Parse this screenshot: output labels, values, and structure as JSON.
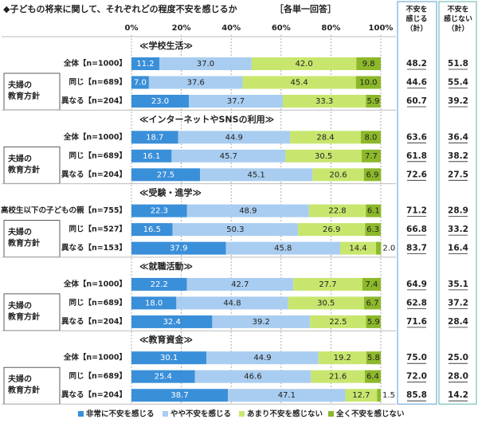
{
  "chart_data": {
    "type": "bar",
    "title": "◆子どもの将来に関して、それぞれどの程度不安を感じるか",
    "note": "［各単一回答］",
    "column_headers": [
      [
        "不安を",
        "感じる",
        "（計）"
      ],
      [
        "不安を",
        "感じない",
        "（計）"
      ]
    ],
    "xlim": [
      0,
      100
    ],
    "xticks": [
      {
        "value": 0,
        "label": "0%"
      },
      {
        "value": 20,
        "label": "20%"
      },
      {
        "value": 40,
        "label": "40%"
      },
      {
        "value": 60,
        "label": "60%"
      },
      {
        "value": 80,
        "label": "80%"
      },
      {
        "value": 100,
        "label": "100%"
      }
    ],
    "series": [
      {
        "name": "非常に不安を感じる",
        "color": "#3a8fd9"
      },
      {
        "name": "やや不安を感じる",
        "color": "#a9cdf0"
      },
      {
        "name": "あまり不安を感じない",
        "color": "#c8e66e"
      },
      {
        "name": "全く不安を感じない",
        "color": "#8cb82a"
      }
    ],
    "sections": [
      {
        "title": "≪学校生活≫",
        "group_label": [
          "夫婦の",
          "教育方針"
        ],
        "rows": [
          {
            "label": "全体【n=1000】",
            "values": [
              11.2,
              37.0,
              42.0,
              9.8
            ],
            "value_labels": [
              "11.2",
              "37.0",
              "42.0",
              "9.8"
            ],
            "totals": [
              48.2,
              51.8
            ],
            "total_labels": [
              "48.2",
              "51.8"
            ]
          },
          {
            "label": "同じ【n=689】",
            "values": [
              7.0,
              37.6,
              45.4,
              10.0
            ],
            "value_labels": [
              "7.0",
              "37.6",
              "45.4",
              "10.0"
            ],
            "totals": [
              44.6,
              55.4
            ],
            "total_labels": [
              "44.6",
              "55.4"
            ]
          },
          {
            "label": "異なる【n=204】",
            "values": [
              23.0,
              37.7,
              33.3,
              5.9
            ],
            "value_labels": [
              "23.0",
              "37.7",
              "33.3",
              "5.9"
            ],
            "totals": [
              60.7,
              39.2
            ],
            "total_labels": [
              "60.7",
              "39.2"
            ]
          }
        ]
      },
      {
        "title": "≪インターネットやSNSの利用≫",
        "group_label": [
          "夫婦の",
          "教育方針"
        ],
        "rows": [
          {
            "label": "全体【n=1000】",
            "values": [
              18.7,
              44.9,
              28.4,
              8.0
            ],
            "value_labels": [
              "18.7",
              "44.9",
              "28.4",
              "8.0"
            ],
            "totals": [
              63.6,
              36.4
            ],
            "total_labels": [
              "63.6",
              "36.4"
            ]
          },
          {
            "label": "同じ【n=689】",
            "values": [
              16.1,
              45.7,
              30.5,
              7.7
            ],
            "value_labels": [
              "16.1",
              "45.7",
              "30.5",
              "7.7"
            ],
            "totals": [
              61.8,
              38.2
            ],
            "total_labels": [
              "61.8",
              "38.2"
            ]
          },
          {
            "label": "異なる【n=204】",
            "values": [
              27.5,
              45.1,
              20.6,
              6.9
            ],
            "value_labels": [
              "27.5",
              "45.1",
              "20.6",
              "6.9"
            ],
            "totals": [
              72.6,
              27.5
            ],
            "total_labels": [
              "72.6",
              "27.5"
            ]
          }
        ]
      },
      {
        "title": "≪受験・進学≫",
        "group_label": [
          "夫婦の",
          "教育方針"
        ],
        "rows": [
          {
            "label": "高校生以下の子どもの親【n=755】",
            "values": [
              22.3,
              48.9,
              22.8,
              6.1
            ],
            "value_labels": [
              "22.3",
              "48.9",
              "22.8",
              "6.1"
            ],
            "totals": [
              71.2,
              28.9
            ],
            "total_labels": [
              "71.2",
              "28.9"
            ]
          },
          {
            "label": "同じ【n=527】",
            "values": [
              16.5,
              50.3,
              26.9,
              6.3
            ],
            "value_labels": [
              "16.5",
              "50.3",
              "26.9",
              "6.3"
            ],
            "totals": [
              66.8,
              33.2
            ],
            "total_labels": [
              "66.8",
              "33.2"
            ]
          },
          {
            "label": "異なる【n=153】",
            "values": [
              37.9,
              45.8,
              14.4,
              2.0
            ],
            "value_labels": [
              "37.9",
              "45.8",
              "14.4",
              "2.0"
            ],
            "totals": [
              83.7,
              16.4
            ],
            "total_labels": [
              "83.7",
              "16.4"
            ]
          }
        ]
      },
      {
        "title": "≪就職活動≫",
        "group_label": [
          "夫婦の",
          "教育方針"
        ],
        "rows": [
          {
            "label": "全体【n=1000】",
            "values": [
              22.2,
              42.7,
              27.7,
              7.4
            ],
            "value_labels": [
              "22.2",
              "42.7",
              "27.7",
              "7.4"
            ],
            "totals": [
              64.9,
              35.1
            ],
            "total_labels": [
              "64.9",
              "35.1"
            ]
          },
          {
            "label": "同じ【n=689】",
            "values": [
              18.0,
              44.8,
              30.5,
              6.7
            ],
            "value_labels": [
              "18.0",
              "44.8",
              "30.5",
              "6.7"
            ],
            "totals": [
              62.8,
              37.2
            ],
            "total_labels": [
              "62.8",
              "37.2"
            ]
          },
          {
            "label": "異なる【n=204】",
            "values": [
              32.4,
              39.2,
              22.5,
              5.9
            ],
            "value_labels": [
              "32.4",
              "39.2",
              "22.5",
              "5.9"
            ],
            "totals": [
              71.6,
              28.4
            ],
            "total_labels": [
              "71.6",
              "28.4"
            ]
          }
        ]
      },
      {
        "title": "≪教育資金≫",
        "group_label": [
          "夫婦の",
          "教育方針"
        ],
        "rows": [
          {
            "label": "全体【n=1000】",
            "values": [
              30.1,
              44.9,
              19.2,
              5.8
            ],
            "value_labels": [
              "30.1",
              "44.9",
              "19.2",
              "5.8"
            ],
            "totals": [
              75.0,
              25.0
            ],
            "total_labels": [
              "75.0",
              "25.0"
            ]
          },
          {
            "label": "同じ【n=689】",
            "values": [
              25.4,
              46.6,
              21.6,
              6.4
            ],
            "value_labels": [
              "25.4",
              "46.6",
              "21.6",
              "6.4"
            ],
            "totals": [
              72.0,
              28.0
            ],
            "total_labels": [
              "72.0",
              "28.0"
            ]
          },
          {
            "label": "異なる【n=204】",
            "values": [
              38.7,
              47.1,
              12.7,
              1.5
            ],
            "value_labels": [
              "38.7",
              "47.1",
              "12.7",
              "1.5"
            ],
            "totals": [
              85.8,
              14.2
            ],
            "total_labels": [
              "85.8",
              "14.2"
            ]
          }
        ]
      }
    ]
  }
}
